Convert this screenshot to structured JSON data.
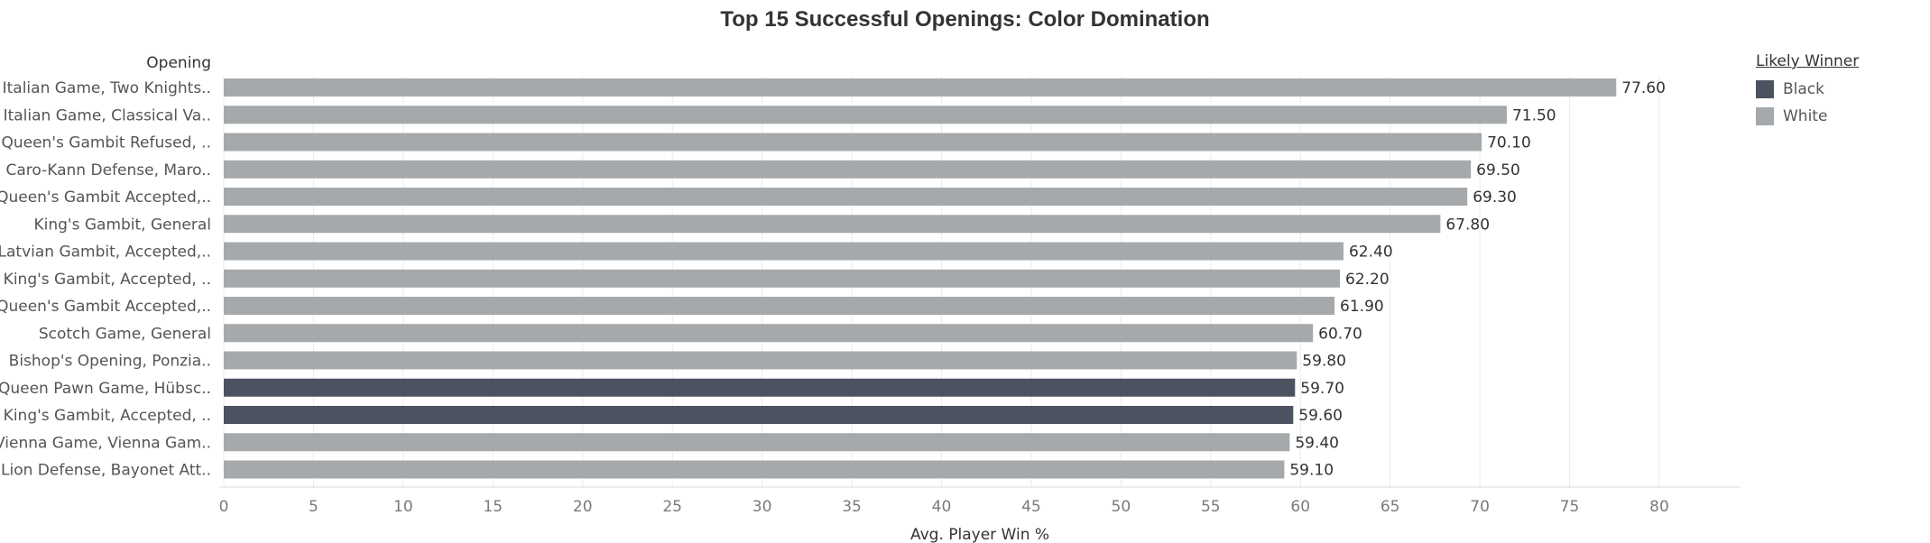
{
  "chart_data": {
    "type": "bar",
    "orientation": "horizontal",
    "title": "Top 15 Successful Openings: Color Domination",
    "category_header": "Opening",
    "xlabel": "Avg. Player Win %",
    "xlim": [
      0,
      84
    ],
    "xticks": [
      0,
      5,
      10,
      15,
      20,
      25,
      30,
      35,
      40,
      45,
      50,
      55,
      60,
      65,
      70,
      75,
      80
    ],
    "grid": "vertical",
    "legend": {
      "title": "Likely Winner",
      "placement": "right",
      "entries": [
        {
          "label": "Black",
          "color": "#4d5261"
        },
        {
          "label": "White",
          "color": "#a5a9ab"
        }
      ]
    },
    "categories": [
      "Italian Game, Two Knights..",
      "Italian Game, Classical Va..",
      "Queen's Gambit Refused, ..",
      "Caro-Kann Defense, Maro..",
      "Queen's Gambit Accepted,..",
      "King's Gambit, General",
      "Latvian Gambit, Accepted,..",
      "King's Gambit, Accepted, ..",
      "Queen's Gambit Accepted,..",
      "Scotch Game, General",
      "Bishop's Opening, Ponzia..",
      "Queen Pawn Game, Hübsc..",
      "King's Gambit, Accepted, ..",
      "Vienna Game, Vienna Gam..",
      "Lion Defense, Bayonet Att.."
    ],
    "values": [
      77.6,
      71.5,
      70.1,
      69.5,
      69.3,
      67.8,
      62.4,
      62.2,
      61.9,
      60.7,
      59.8,
      59.7,
      59.6,
      59.4,
      59.1
    ],
    "value_labels": [
      "77.60",
      "71.50",
      "70.10",
      "69.50",
      "69.30",
      "67.80",
      "62.40",
      "62.20",
      "61.90",
      "60.70",
      "59.80",
      "59.70",
      "59.60",
      "59.40",
      "59.10"
    ],
    "winner": [
      "White",
      "White",
      "White",
      "White",
      "White",
      "White",
      "White",
      "White",
      "White",
      "White",
      "White",
      "Black",
      "Black",
      "White",
      "White"
    ]
  }
}
